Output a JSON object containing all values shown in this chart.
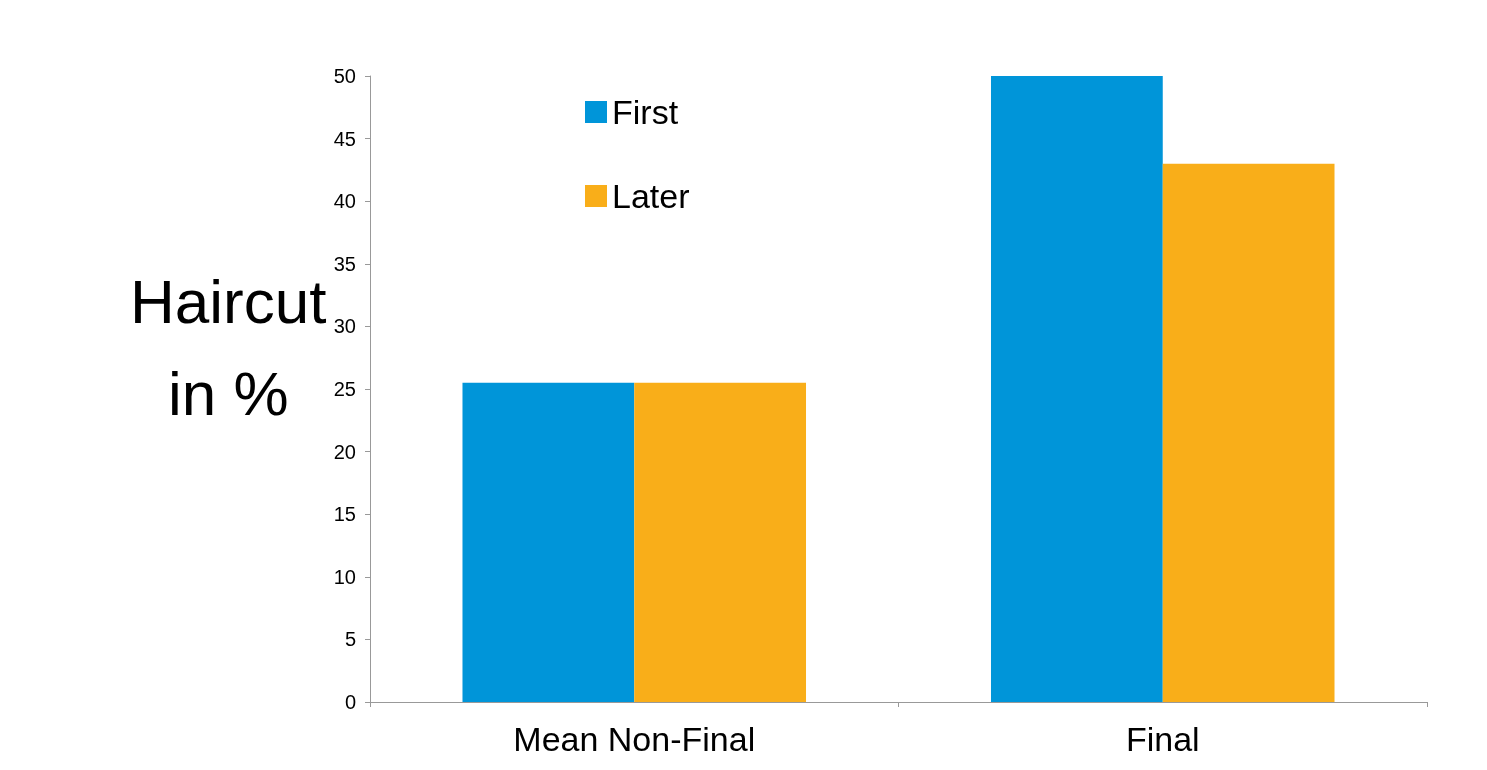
{
  "chart_data": {
    "type": "bar",
    "ylabel": "Haircut\nin %",
    "categories": [
      "Mean Non-Final",
      "Final"
    ],
    "series": [
      {
        "name": "First",
        "color": "#0095d9",
        "values": [
          25.5,
          50
        ]
      },
      {
        "name": "Later",
        "color": "#f9ae19",
        "values": [
          25.5,
          43
        ]
      }
    ],
    "ylim": [
      0,
      50
    ],
    "yticks": [
      0,
      5,
      10,
      15,
      20,
      25,
      30,
      35,
      40,
      45,
      50
    ],
    "grid": false,
    "legend": "top left"
  }
}
